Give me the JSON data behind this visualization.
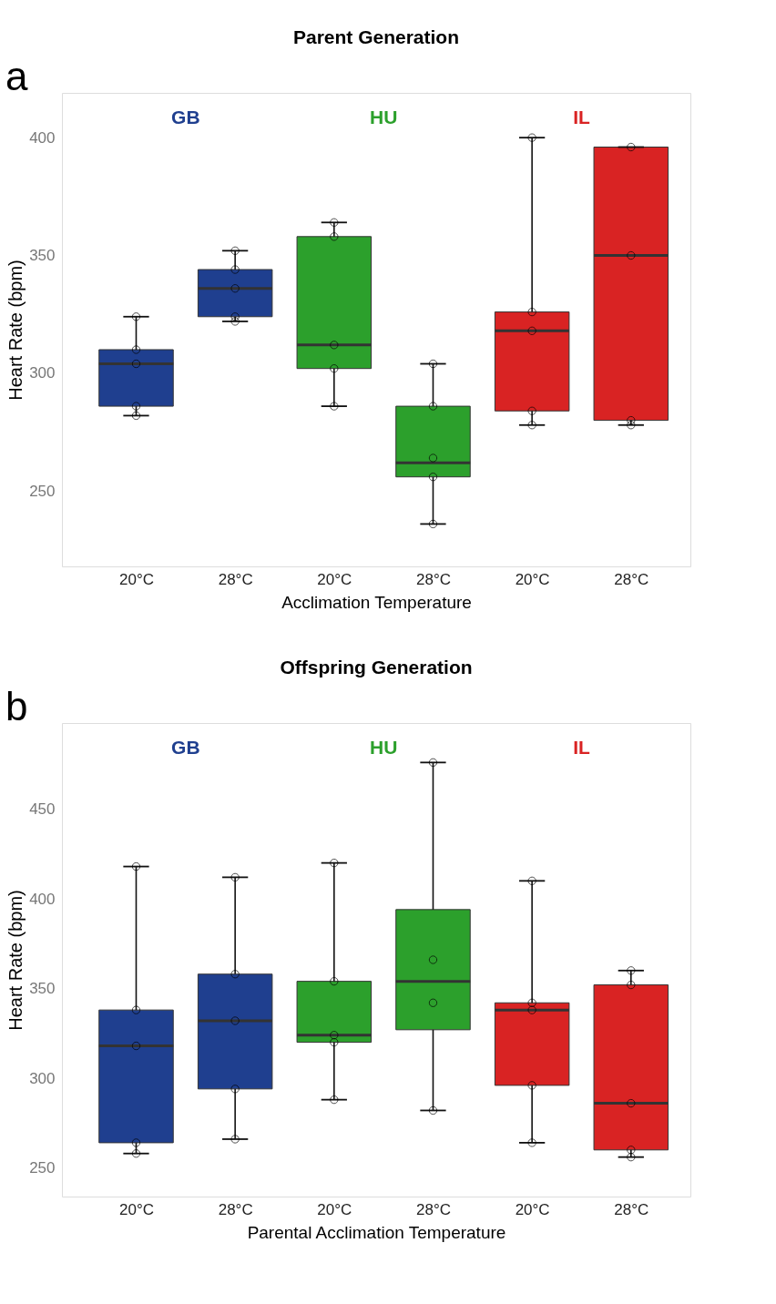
{
  "chart_data": [
    {
      "type": "box",
      "title": "Parent Generation",
      "xlabel": "Acclimation Temperature",
      "ylabel": "Heart Rate (bpm)",
      "annotations": [
        "a"
      ],
      "categories": [
        "20°C",
        "28°C",
        "20°C",
        "28°C",
        "20°C",
        "28°C"
      ],
      "ylim": [
        218,
        419
      ],
      "yticks": [
        250,
        300,
        350,
        400
      ],
      "marker": "circle",
      "series": [
        {
          "name": "GB",
          "color": "#1f3f8f",
          "boxes": [
            {
              "low": 282,
              "q1": 286,
              "median": 304,
              "q3": 310,
              "high": 324
            },
            {
              "low": 322,
              "q1": 324,
              "median": 336,
              "q3": 344,
              "high": 352
            },
            null,
            null,
            null,
            null
          ]
        },
        {
          "name": "HU",
          "color": "#2ca02c",
          "boxes": [
            null,
            null,
            {
              "low": 286,
              "q1": 302,
              "median": 312,
              "q3": 358,
              "high": 364
            },
            {
              "low": 236,
              "q1": 256,
              "median": 262,
              "q3": 286,
              "high": 304
            },
            null,
            null
          ]
        },
        {
          "name": "IL",
          "color": "#d92323",
          "boxes": [
            null,
            null,
            null,
            null,
            {
              "low": 278,
              "q1": 284,
              "median": 318,
              "q3": 326,
              "high": 400
            },
            {
              "low": 278,
              "q1": 280,
              "median": 350,
              "q3": 396,
              "high": 396
            }
          ]
        },
        {
          "type": "scatter",
          "color": "#000000",
          "values": [
            324,
            352,
            364,
            304,
            400,
            396
          ]
        },
        {
          "type": "scatter",
          "color": "#000000",
          "values": [
            310,
            344,
            358,
            286,
            326,
            350
          ]
        },
        {
          "type": "scatter",
          "color": "#000000",
          "values": [
            304,
            336,
            312,
            264,
            318,
            280
          ]
        },
        {
          "type": "scatter",
          "color": "#000000",
          "values": [
            286,
            324,
            302,
            256,
            284,
            278
          ]
        },
        {
          "type": "scatter",
          "color": "#000000",
          "values": [
            282,
            322,
            286,
            236,
            278,
            null
          ]
        }
      ]
    },
    {
      "type": "box",
      "title": "Offspring Generation",
      "xlabel": "Parental Acclimation Temperature",
      "ylabel": "Heart Rate (bpm)",
      "annotations": [
        "b"
      ],
      "categories": [
        "20°C",
        "28°C",
        "20°C",
        "28°C",
        "20°C",
        "28°C"
      ],
      "ylim": [
        234,
        498
      ],
      "yticks": [
        250,
        300,
        350,
        400,
        450
      ],
      "marker": "circle",
      "series": [
        {
          "name": "GB",
          "color": "#1f3f8f",
          "boxes": [
            {
              "low": 258,
              "q1": 264,
              "median": 318,
              "q3": 338,
              "high": 418
            },
            {
              "low": 266,
              "q1": 294,
              "median": 332,
              "q3": 358,
              "high": 412
            },
            null,
            null,
            null,
            null
          ]
        },
        {
          "name": "HU",
          "color": "#2ca02c",
          "boxes": [
            null,
            null,
            {
              "low": 288,
              "q1": 320,
              "median": 324,
              "q3": 354,
              "high": 420
            },
            {
              "low": 282,
              "q1": 327,
              "median": 354,
              "q3": 394,
              "high": 476
            },
            null,
            null
          ]
        },
        {
          "name": "IL",
          "color": "#d92323",
          "boxes": [
            null,
            null,
            null,
            null,
            {
              "low": 264,
              "q1": 296,
              "median": 338,
              "q3": 342,
              "high": 410
            },
            {
              "low": 256,
              "q1": 260,
              "median": 286,
              "q3": 352,
              "high": 360
            }
          ]
        },
        {
          "type": "scatter",
          "color": "#000000",
          "values": [
            418,
            412,
            420,
            476,
            410,
            360
          ]
        },
        {
          "type": "scatter",
          "color": "#000000",
          "values": [
            338,
            358,
            354,
            366,
            342,
            352
          ]
        },
        {
          "type": "scatter",
          "color": "#000000",
          "values": [
            318,
            332,
            324,
            342,
            338,
            286
          ]
        },
        {
          "type": "scatter",
          "color": "#000000",
          "values": [
            264,
            294,
            320,
            282,
            296,
            260
          ]
        },
        {
          "type": "scatter",
          "color": "#000000",
          "values": [
            258,
            266,
            288,
            null,
            264,
            256
          ]
        }
      ]
    }
  ]
}
